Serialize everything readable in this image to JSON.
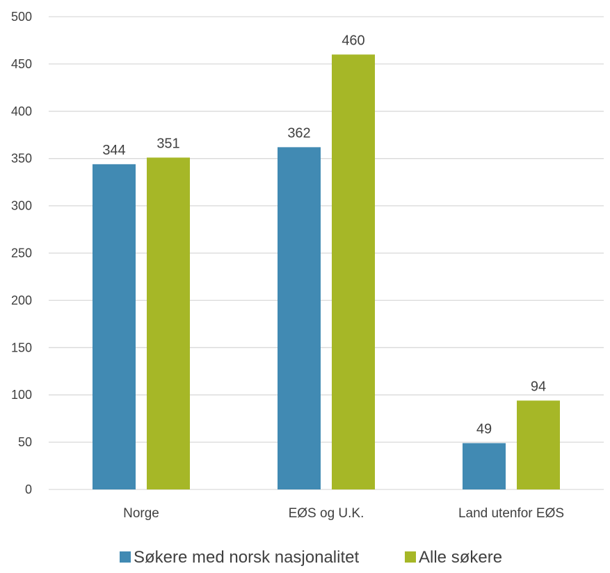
{
  "chart_data": {
    "type": "bar",
    "categories": [
      "Norge",
      "EØS og U.K.",
      "Land utenfor EØS"
    ],
    "series": [
      {
        "name": "Søkere med norsk nasjonalitet",
        "values": [
          344,
          362,
          49
        ],
        "color": "#418ab3"
      },
      {
        "name": "Alle søkere",
        "values": [
          351,
          460,
          94
        ],
        "color": "#a6b727"
      }
    ],
    "ylim": [
      0,
      500
    ],
    "yticks": [
      0,
      50,
      100,
      150,
      200,
      250,
      300,
      350,
      400,
      450,
      500
    ],
    "grid": true,
    "legend": "bottom",
    "gridColor": "#d9d9d9"
  }
}
